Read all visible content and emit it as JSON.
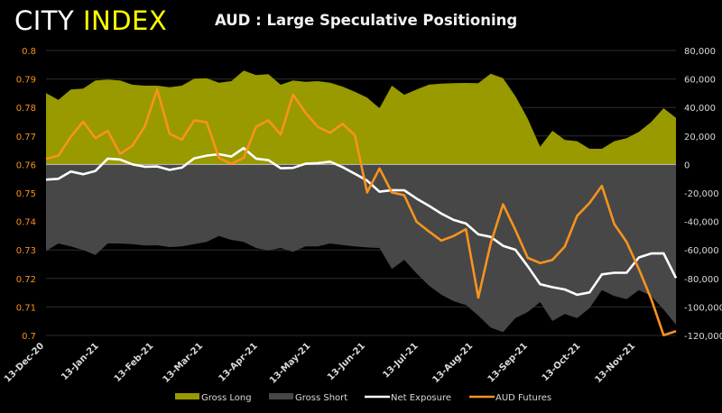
{
  "logo": {
    "part1": "CITY",
    "part2": "INDEX"
  },
  "chart_data": {
    "type": "area+line",
    "title": "AUD : Large Speculative Positioning",
    "colors": {
      "gross_long": "#999900",
      "gross_short": "#474747",
      "net_exposure": "#ffffff",
      "aud_futures": "#f7931e",
      "left_axis_text": "#f7931e",
      "right_axis_text": "#d9d9d9",
      "grid": "#2e2e2e"
    },
    "x_axis": {
      "type": "date",
      "min": "2020-12-15",
      "max": "2021-12-07",
      "ticks": [
        {
          "date": "2020-12-13",
          "label": "13-Dec-20"
        },
        {
          "date": "2021-01-13",
          "label": "13-Jan-21"
        },
        {
          "date": "2021-02-13",
          "label": "13-Feb-21"
        },
        {
          "date": "2021-03-13",
          "label": "13-Mar-21"
        },
        {
          "date": "2021-04-13",
          "label": "13-Apr-21"
        },
        {
          "date": "2021-05-13",
          "label": "13-May-21"
        },
        {
          "date": "2021-06-13",
          "label": "13-Jun-21"
        },
        {
          "date": "2021-07-13",
          "label": "13-Jul-21"
        },
        {
          "date": "2021-08-13",
          "label": "13-Aug-21"
        },
        {
          "date": "2021-09-13",
          "label": "13-Sep-21"
        },
        {
          "date": "2021-10-13",
          "label": "13-Oct-21"
        },
        {
          "date": "2021-11-13",
          "label": "13-Nov-21"
        }
      ]
    },
    "y_left": {
      "min": 0.7,
      "max": 0.8,
      "ticks": [
        "0.7",
        "0.71",
        "0.72",
        "0.73",
        "0.74",
        "0.75",
        "0.76",
        "0.77",
        "0.78",
        "0.79",
        "0.8"
      ]
    },
    "y_right": {
      "min": -120000,
      "max": 80000,
      "ticks": [
        "-120,000",
        "-100,000",
        "-80,000",
        "-60,000",
        "-40,000",
        "-20,000",
        "0",
        "20,000",
        "40,000",
        "60,000",
        "80,000"
      ]
    },
    "grid": true,
    "legend_position": "bottom",
    "x": [
      "2020-12-15",
      "2020-12-22",
      "2020-12-29",
      "2021-01-05",
      "2021-01-12",
      "2021-01-19",
      "2021-01-26",
      "2021-02-02",
      "2021-02-09",
      "2021-02-16",
      "2021-02-23",
      "2021-03-02",
      "2021-03-09",
      "2021-03-16",
      "2021-03-23",
      "2021-03-30",
      "2021-04-06",
      "2021-04-13",
      "2021-04-20",
      "2021-04-27",
      "2021-05-04",
      "2021-05-11",
      "2021-05-18",
      "2021-05-25",
      "2021-06-01",
      "2021-06-08",
      "2021-06-15",
      "2021-06-22",
      "2021-06-29",
      "2021-07-06",
      "2021-07-13",
      "2021-07-20",
      "2021-07-27",
      "2021-08-03",
      "2021-08-10",
      "2021-08-17",
      "2021-08-24",
      "2021-08-31",
      "2021-09-07",
      "2021-09-14",
      "2021-09-21",
      "2021-09-28",
      "2021-10-05",
      "2021-10-12",
      "2021-10-19",
      "2021-10-26",
      "2021-11-02",
      "2021-11-09",
      "2021-11-16",
      "2021-11-23",
      "2021-11-30",
      "2021-12-07"
    ],
    "series": [
      {
        "name": "Gross Long",
        "kind": "area",
        "axis": "right",
        "values": [
          50060,
          45380,
          52590,
          53230,
          58920,
          59560,
          58920,
          55950,
          55320,
          55320,
          54190,
          55320,
          60190,
          60570,
          57400,
          58480,
          65890,
          62720,
          63350,
          55950,
          58920,
          58040,
          58480,
          57400,
          54680,
          51000,
          46900,
          39500,
          55300,
          48900,
          52600,
          56000,
          56800,
          57000,
          57200,
          57000,
          63700,
          60600,
          47900,
          32100,
          12500,
          23700,
          17300,
          16300,
          11000,
          11000,
          16300,
          18500,
          22900,
          29900,
          39500,
          32700
        ]
      },
      {
        "name": "Gross Short",
        "kind": "area",
        "axis": "right",
        "values": [
          -60700,
          -55440,
          -57530,
          -60060,
          -63480,
          -55440,
          -55440,
          -55890,
          -56900,
          -56710,
          -57970,
          -57530,
          -55890,
          -54370,
          -50190,
          -52910,
          -54370,
          -58610,
          -60320,
          -58610,
          -61330,
          -57530,
          -57530,
          -55440,
          -56520,
          -57530,
          -58200,
          -58610,
          -73360,
          -67030,
          -76520,
          -85000,
          -91300,
          -95950,
          -98670,
          -106070,
          -114500,
          -117660,
          -107780,
          -103540,
          -96580,
          -109870,
          -105000,
          -107780,
          -100820,
          -88160,
          -92340,
          -94490,
          -88160,
          -92340,
          -101840,
          -112400
        ]
      },
      {
        "name": "Net Exposure",
        "kind": "line",
        "axis": "right",
        "values": [
          -10640,
          -10060,
          -4940,
          -6830,
          -4560,
          4120,
          3480,
          60,
          -1580,
          -1390,
          -3780,
          -2210,
          4300,
          6200,
          7210,
          5570,
          11520,
          4110,
          3030,
          -2660,
          -2410,
          510,
          950,
          1960,
          -1840,
          -6530,
          -11300,
          -19110,
          -18060,
          -18130,
          -23920,
          -29000,
          -34500,
          -38950,
          -41470,
          -49070,
          -50800,
          -57060,
          -59880,
          -71440,
          -84080,
          -86170,
          -87700,
          -91480,
          -89820,
          -77160,
          -76040,
          -75990,
          -65260,
          -62440,
          -62340,
          -79700
        ]
      },
      {
        "name": "AUD Futures",
        "kind": "line",
        "axis": "left",
        "values": [
          0.762,
          0.7631,
          0.7697,
          0.775,
          0.7692,
          0.7718,
          0.7637,
          0.7666,
          0.7734,
          0.7863,
          0.7708,
          0.7687,
          0.7755,
          0.7748,
          0.7623,
          0.7602,
          0.7623,
          0.7732,
          0.7755,
          0.7705,
          0.7845,
          0.7782,
          0.7732,
          0.7711,
          0.7743,
          0.7703,
          0.7502,
          0.7586,
          0.7502,
          0.7492,
          0.7399,
          0.7365,
          0.7333,
          0.7349,
          0.7373,
          0.7133,
          0.7323,
          0.746,
          0.737,
          0.7272,
          0.7254,
          0.7265,
          0.7312,
          0.742,
          0.7465,
          0.7525,
          0.7391,
          0.7328,
          0.7233,
          0.7128,
          0.7001,
          0.7015
        ]
      }
    ]
  }
}
